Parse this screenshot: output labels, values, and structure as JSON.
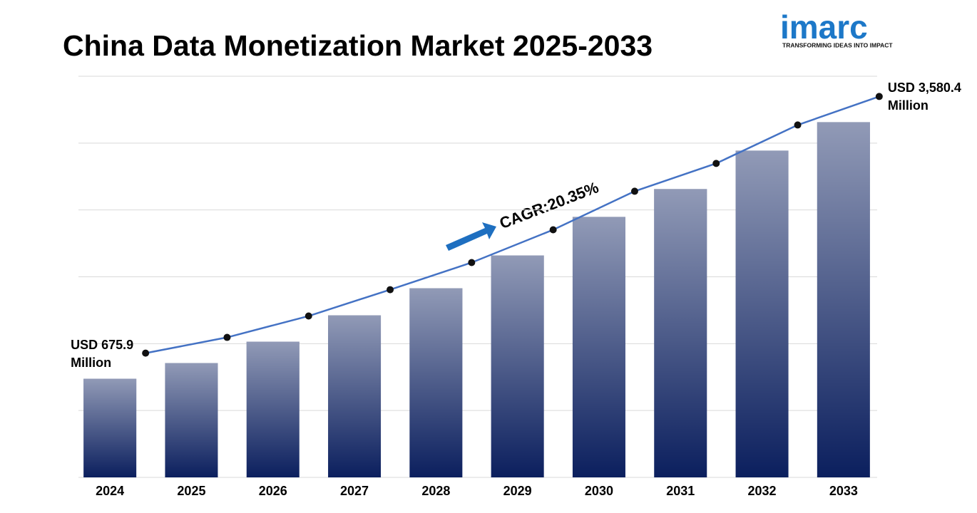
{
  "chart_data": {
    "type": "bar",
    "title": "China Data Monetization Market  2025-2033",
    "categories": [
      "2024",
      "2025",
      "2026",
      "2027",
      "2028",
      "2029",
      "2030",
      "2031",
      "2032",
      "2033"
    ],
    "values": [
      675.9,
      854,
      1096,
      1394,
      1701,
      2072,
      2508,
      2823,
      3258,
      3580.4
    ],
    "value_labels": [
      "USD 675.9 Million",
      null,
      null,
      null,
      null,
      null,
      null,
      null,
      null,
      "USD 3,580.4 Million"
    ],
    "color": "#0b1f5e",
    "line_color": "#4472c4",
    "ylim": [
      -440,
      4100
    ],
    "grid": true,
    "annotation": "CAGR:20.35%"
  },
  "logo": {
    "name": "imarc",
    "tagline": "TRANSFORMING IDEAS INTO IMPACT"
  }
}
